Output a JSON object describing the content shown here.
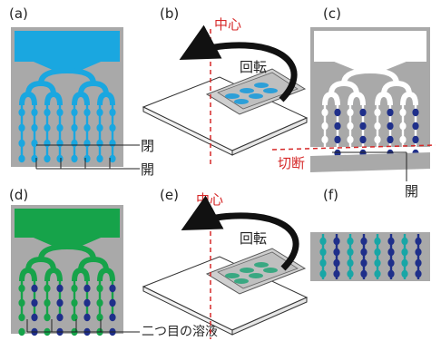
{
  "panels": {
    "a": {
      "label": "(a)",
      "open_label": "開",
      "closed_label": "閉"
    },
    "b": {
      "label": "(b)",
      "center_label": "中心",
      "rotate_label": "回転"
    },
    "c": {
      "label": "(c)",
      "cut_label": "切断",
      "open_label": "開"
    },
    "d": {
      "label": "(d)",
      "solution_label": "二つ目の溶液"
    },
    "e": {
      "label": "(e)",
      "center_label": "中心",
      "rotate_label": "回転"
    },
    "f": {
      "label": "(f)"
    }
  },
  "colors": {
    "background_gray": "#a9a9a9",
    "channel_cyan": "#1aa7e0",
    "channel_green": "#16a34a",
    "channel_white": "#ffffff",
    "bead_navy": "#1f2f8a",
    "bead_teal": "#18a6a6",
    "center_red": "#d62828",
    "arrow_black": "#111111",
    "chip_gray": "#cfcfcf"
  }
}
